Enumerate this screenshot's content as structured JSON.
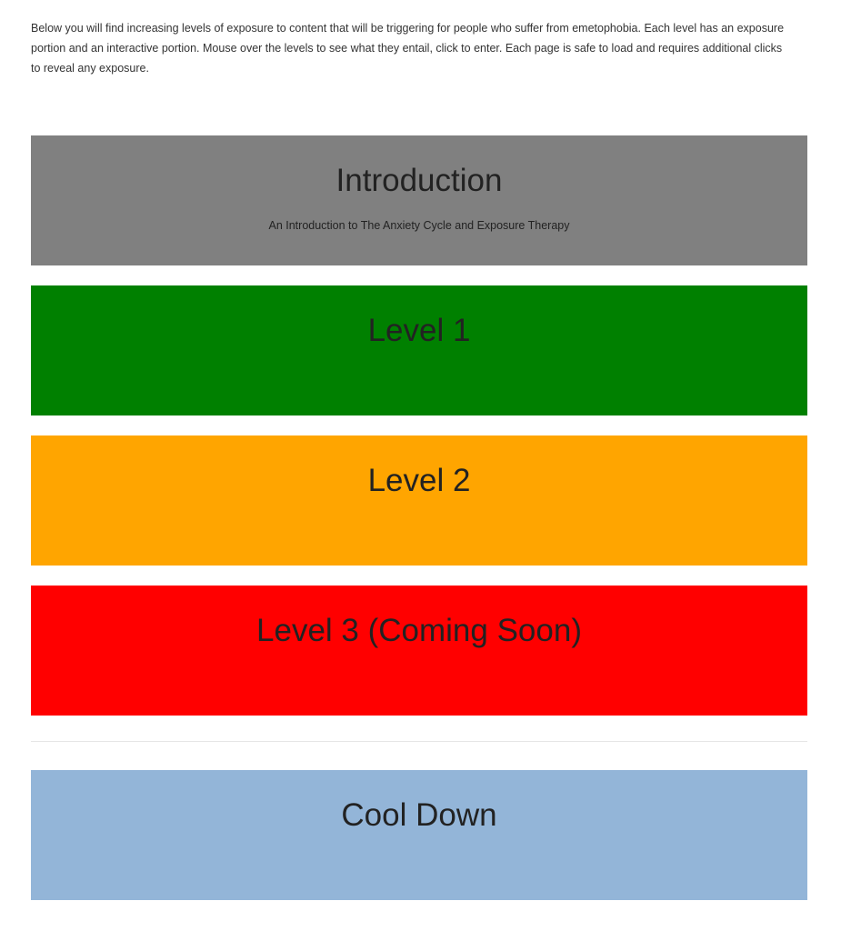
{
  "intro_text": "Below you will find increasing levels of exposure to content that will be triggering for people who suffer from emetophobia. Each level has an exposure portion and an interactive portion. Mouse over the levels to see what they entail, click to enter. Each page is safe to load and requires additional clicks to reveal any exposure.",
  "levels": [
    {
      "title": "Introduction",
      "subtitle": "An Introduction to The Anxiety Cycle and Exposure Therapy",
      "color": "#808080"
    },
    {
      "title": "Level 1",
      "color": "#008000"
    },
    {
      "title": "Level 2",
      "color": "#FFA500"
    },
    {
      "title": "Level 3 (Coming Soon)",
      "color": "#FF0000"
    }
  ],
  "cool_down": {
    "title": "Cool Down",
    "color": "#93B5D8"
  }
}
